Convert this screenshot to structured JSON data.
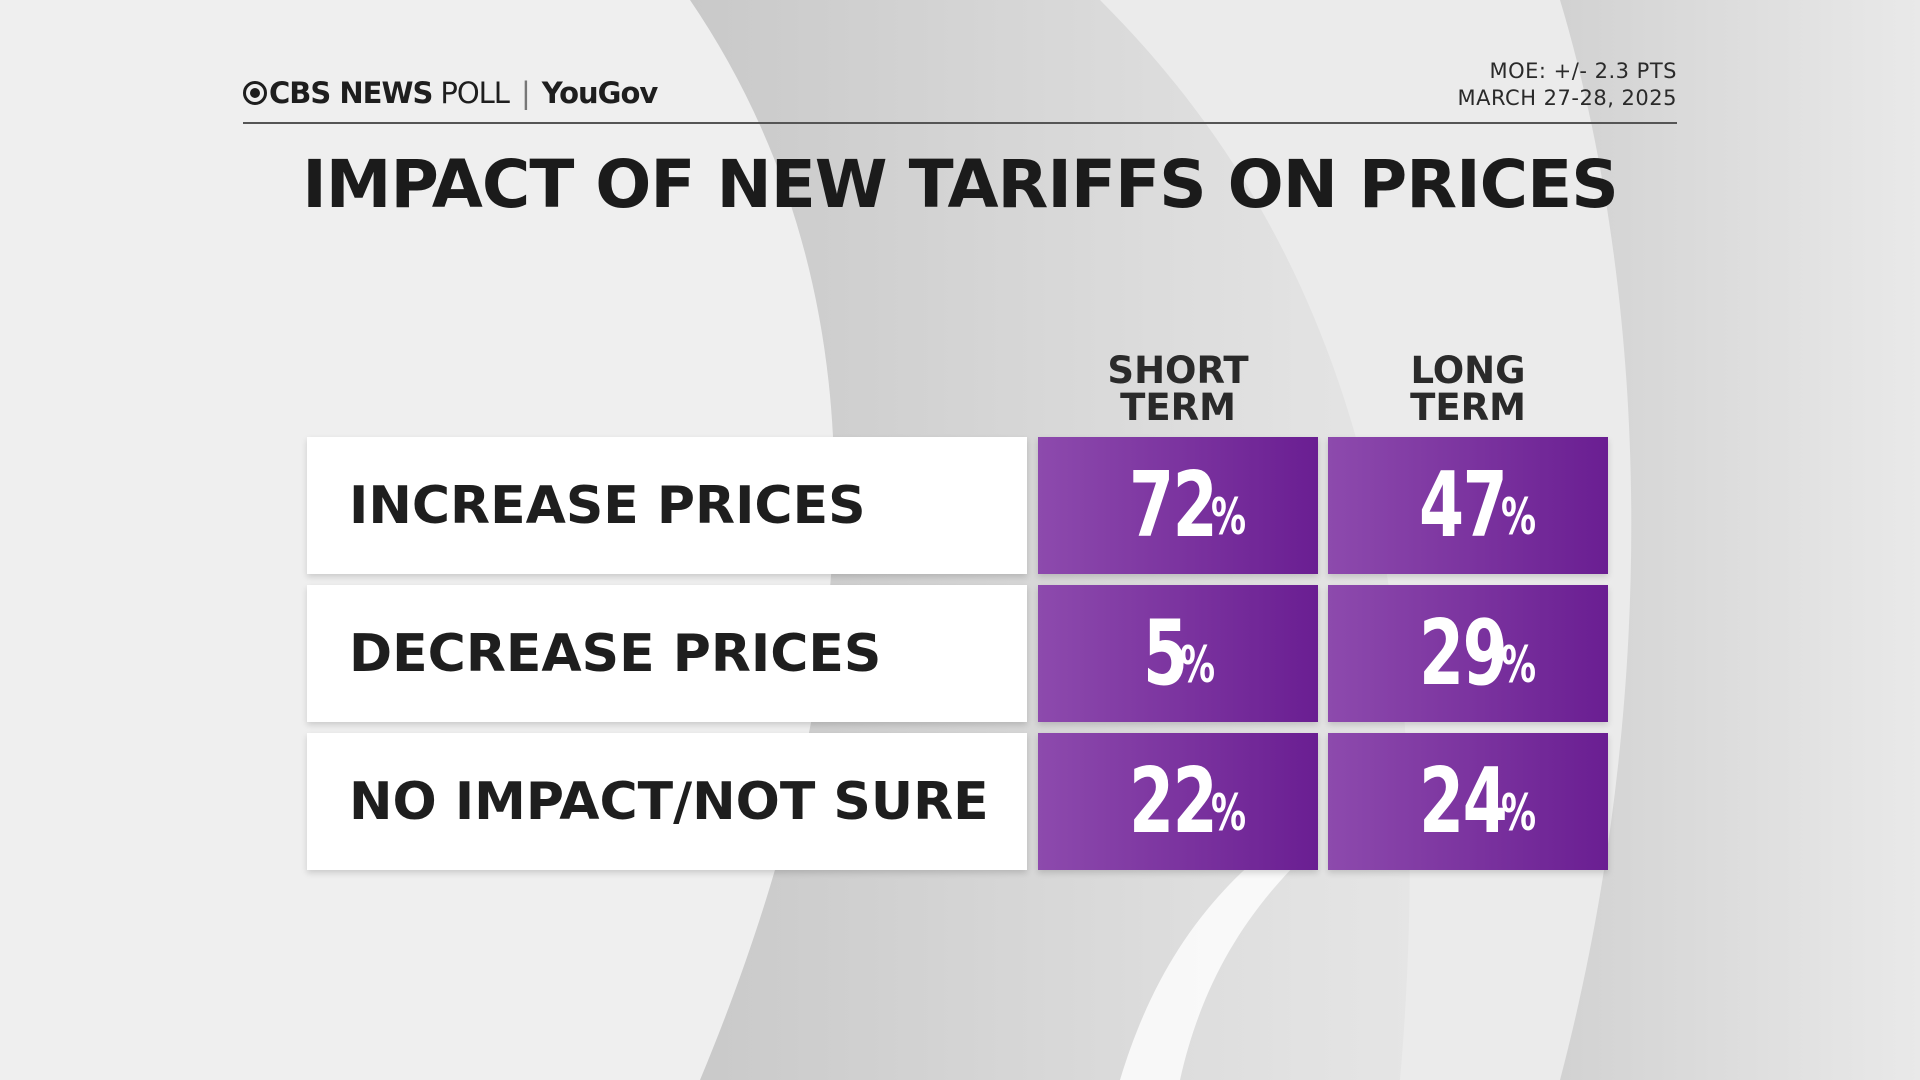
{
  "header": {
    "logo_text": "CBS NEWS POLL | YouGov",
    "logo_cbs": "CBS NEWS",
    "logo_poll": "POLL",
    "logo_sep": "|",
    "logo_yougov": "YouGov",
    "moe": "MOE: +/- 2.3 PTS",
    "date": "MARCH 27-28, 2025"
  },
  "colors": {
    "accent_purple_start": "#8d4aad",
    "accent_purple_end": "#6a1e92",
    "background": "#eeeeee"
  },
  "chart_data": {
    "type": "table",
    "title": "IMPACT OF NEW TARIFFS ON PRICES",
    "columns": [
      "SHORT TERM",
      "LONG TERM"
    ],
    "column_lines": [
      [
        "SHORT",
        "TERM"
      ],
      [
        "LONG",
        "TERM"
      ]
    ],
    "rows": [
      {
        "label": "INCREASE PRICES",
        "values": [
          72,
          47
        ]
      },
      {
        "label": "DECREASE PRICES",
        "values": [
          5,
          29
        ]
      },
      {
        "label": "NO IMPACT/NOT SURE",
        "values": [
          22,
          24
        ]
      }
    ],
    "unit": "%"
  }
}
